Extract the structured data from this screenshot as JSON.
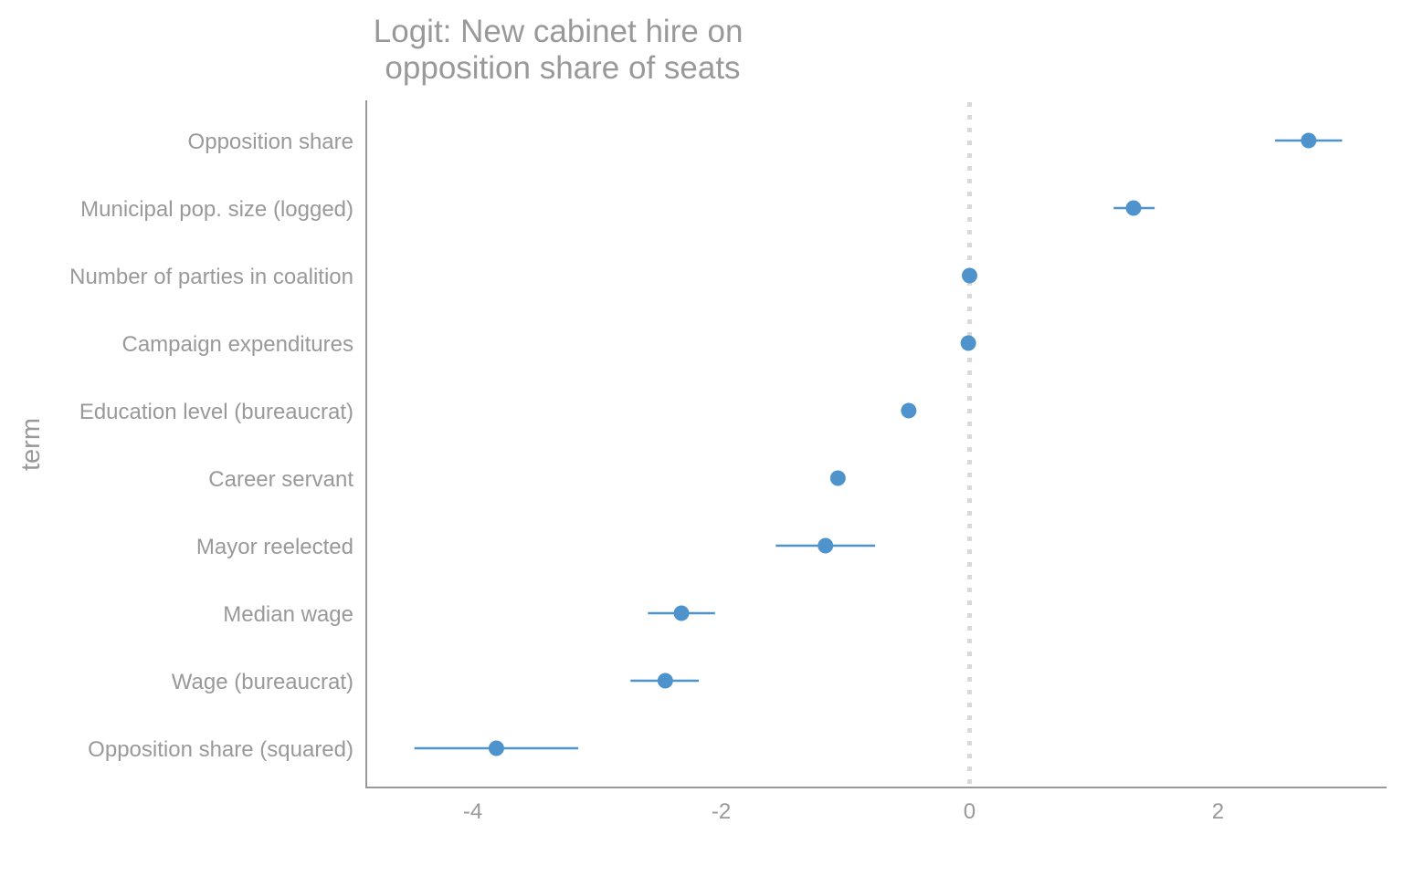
{
  "chart_data": {
    "type": "scatter",
    "title": [
      "Logit: New cabinet hire on",
      "opposition share of seats"
    ],
    "xlabel": "",
    "ylabel": "term",
    "xlim": [
      -4.85,
      3.35
    ],
    "xticks": [
      -4,
      -2,
      0,
      2
    ],
    "xtick_labels": [
      "-4",
      "-2",
      "0",
      "2"
    ],
    "reference_line": 0,
    "grid": false,
    "point_color": "#4f93cc",
    "axis_color": "#999999",
    "reference_color": "#d9d9d9",
    "terms": [
      {
        "label": "Opposition share",
        "estimate": 2.73,
        "low": 2.46,
        "high": 3.0
      },
      {
        "label": "Municipal pop. size (logged)",
        "estimate": 1.32,
        "low": 1.16,
        "high": 1.49
      },
      {
        "label": "Number of parties in coalition",
        "estimate": 0.0,
        "low": -0.02,
        "high": 0.02
      },
      {
        "label": "Campaign expenditures",
        "estimate": -0.01,
        "low": -0.02,
        "high": 0.0
      },
      {
        "label": "Education level (bureaucrat)",
        "estimate": -0.49,
        "low": -0.52,
        "high": -0.46
      },
      {
        "label": "Career servant",
        "estimate": -1.06,
        "low": -1.09,
        "high": -1.03
      },
      {
        "label": "Mayor reelected",
        "estimate": -1.16,
        "low": -1.56,
        "high": -0.76
      },
      {
        "label": "Median wage",
        "estimate": -2.32,
        "low": -2.59,
        "high": -2.05
      },
      {
        "label": "Wage (bureaucrat)",
        "estimate": -2.45,
        "low": -2.73,
        "high": -2.18
      },
      {
        "label": "Opposition share (squared)",
        "estimate": -3.81,
        "low": -4.47,
        "high": -3.15
      }
    ]
  }
}
